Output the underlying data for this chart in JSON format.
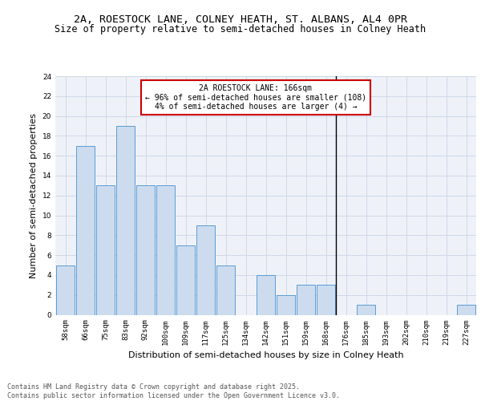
{
  "title_line1": "2A, ROESTOCK LANE, COLNEY HEATH, ST. ALBANS, AL4 0PR",
  "title_line2": "Size of property relative to semi-detached houses in Colney Heath",
  "xlabel": "Distribution of semi-detached houses by size in Colney Heath",
  "ylabel": "Number of semi-detached properties",
  "categories": [
    "58sqm",
    "66sqm",
    "75sqm",
    "83sqm",
    "92sqm",
    "100sqm",
    "109sqm",
    "117sqm",
    "125sqm",
    "134sqm",
    "142sqm",
    "151sqm",
    "159sqm",
    "168sqm",
    "176sqm",
    "185sqm",
    "193sqm",
    "202sqm",
    "210sqm",
    "219sqm",
    "227sqm"
  ],
  "values": [
    5,
    17,
    13,
    19,
    13,
    13,
    7,
    9,
    5,
    0,
    4,
    2,
    3,
    3,
    0,
    1,
    0,
    0,
    0,
    0,
    1
  ],
  "bar_color": "#ccdcee",
  "bar_edge_color": "#5b9bd5",
  "vline_index": 13.5,
  "vline_color": "#000000",
  "annotation_text": "2A ROESTOCK LANE: 166sqm\n← 96% of semi-detached houses are smaller (108)\n4% of semi-detached houses are larger (4) →",
  "annotation_box_color": "#ffffff",
  "annotation_box_edge_color": "#cc0000",
  "ylim": [
    0,
    24
  ],
  "yticks": [
    0,
    2,
    4,
    6,
    8,
    10,
    12,
    14,
    16,
    18,
    20,
    22,
    24
  ],
  "grid_color": "#d0d8e8",
  "background_color": "#eef2f8",
  "footer_text": "Contains HM Land Registry data © Crown copyright and database right 2025.\nContains public sector information licensed under the Open Government Licence v3.0.",
  "title_fontsize": 9.5,
  "subtitle_fontsize": 8.5,
  "axis_label_fontsize": 8,
  "tick_fontsize": 6.5,
  "annotation_fontsize": 7,
  "footer_fontsize": 6
}
